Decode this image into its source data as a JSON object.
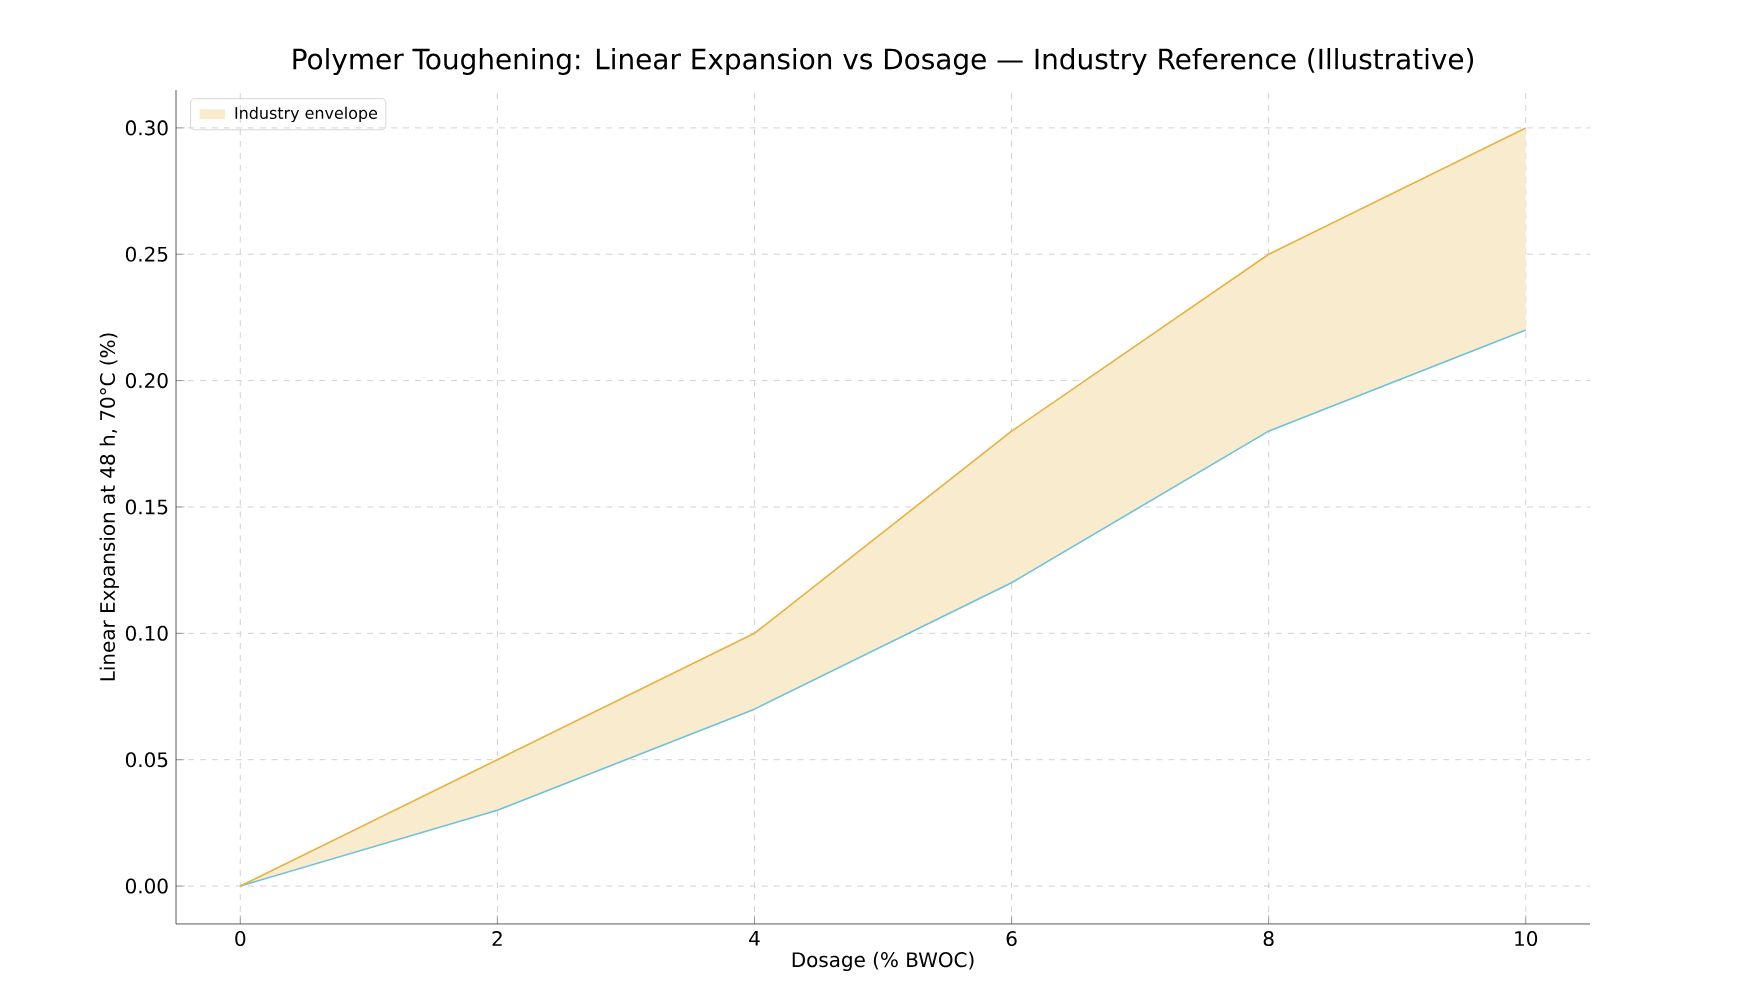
{
  "chart_data": {
    "type": "line",
    "title": "Polymer Toughening: Linear Expansion vs Dosage — Industry Reference (Illustrative)",
    "xlabel": "Dosage (% BWOC)",
    "ylabel": "Linear Expansion at 48 h, 70°C (%)",
    "x": [
      0,
      2,
      4,
      6,
      8,
      10
    ],
    "series": [
      {
        "color": "#6ec1d6",
        "values": [
          0,
          0.03,
          0.07,
          0.12,
          0.18,
          0.22
        ]
      },
      {
        "name": "Industry envelope",
        "color": "#e8b13c",
        "values": [
          0,
          0.05,
          0.1,
          0.18,
          0.25,
          0.3
        ],
        "lower": [
          0,
          0.03,
          0.07,
          0.12,
          0.18,
          0.22
        ],
        "upper": [
          0,
          0.05,
          0.1,
          0.18,
          0.25,
          0.3
        ]
      }
    ],
    "xlim": [
      -0.5,
      10.5
    ],
    "xticks": [
      0,
      2,
      4,
      6,
      8,
      10
    ],
    "ylim": [
      -0.015,
      0.315
    ],
    "yticks": [
      {
        "value": 0,
        "label": "0.00"
      },
      {
        "value": 0.05,
        "label": "0.05"
      },
      {
        "value": 0.1,
        "label": "0.10"
      },
      {
        "value": 0.15,
        "label": "0.15"
      },
      {
        "value": 0.2,
        "label": "0.20"
      },
      {
        "value": 0.25,
        "label": "0.25"
      },
      {
        "value": 0.3,
        "label": "0.30"
      }
    ],
    "grid": true,
    "legend": "top left",
    "marker": "none",
    "line_style": "solid"
  }
}
